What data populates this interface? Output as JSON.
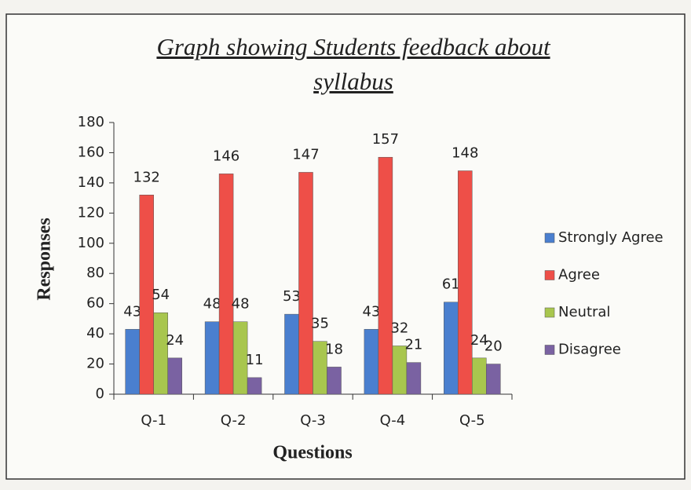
{
  "chart_data": {
    "type": "bar",
    "title": "Graph showing Students feedback about syllabus",
    "x_label": "Questions",
    "y_label": "Responses",
    "categories": [
      "Q-1",
      "Q-2",
      "Q-3",
      "Q-4",
      "Q-5"
    ],
    "series": [
      {
        "name": "Strongly Agree",
        "color": "#4a7fcf",
        "values": [
          43,
          48,
          53,
          43,
          61
        ]
      },
      {
        "name": "Agree",
        "color": "#ee4f48",
        "values": [
          132,
          146,
          147,
          157,
          148
        ]
      },
      {
        "name": "Neutral",
        "color": "#a8c64e",
        "values": [
          54,
          48,
          35,
          32,
          24
        ]
      },
      {
        "name": "Disagree",
        "color": "#7a62a2",
        "values": [
          24,
          11,
          18,
          21,
          20
        ]
      }
    ],
    "ylim": [
      0,
      180
    ],
    "yticks": [
      0,
      20,
      40,
      60,
      80,
      100,
      120,
      140,
      160,
      180
    ],
    "grid": false,
    "legend": "right"
  }
}
